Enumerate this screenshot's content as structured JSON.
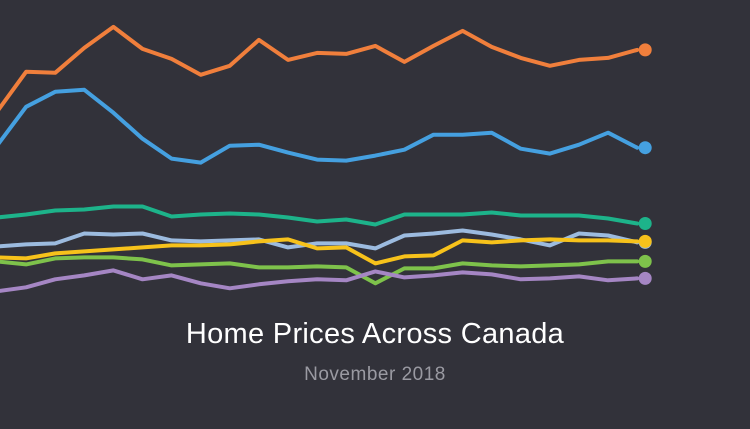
{
  "header": {
    "title": "Home Prices Across Canada",
    "subtitle": "November 2018"
  },
  "chart_data": {
    "type": "line",
    "title": "Home Prices Across Canada",
    "subtitle": "November 2018",
    "xlabel": "",
    "ylabel": "",
    "grid": false,
    "legend": "none",
    "x": [
      0,
      1,
      2,
      3,
      4,
      5,
      6,
      7,
      8,
      9,
      10,
      11,
      12,
      13,
      14,
      15,
      16,
      17,
      18,
      19,
      20,
      21,
      22
    ],
    "ylim": [
      0,
      430
    ],
    "series": [
      {
        "color": "#f07f3c",
        "values": [
          318,
          358,
          357,
          382,
          403,
          381,
          371,
          355,
          364,
          390,
          370,
          377,
          376,
          384,
          368,
          384,
          399,
          383,
          372,
          364,
          370,
          372,
          380
        ]
      },
      {
        "color": "#45a0e0",
        "values": [
          284,
          323,
          338,
          340,
          317,
          291,
          271,
          267,
          284,
          285,
          277,
          270,
          269,
          274,
          280,
          295,
          295,
          297,
          281,
          276,
          285,
          297,
          282
        ]
      },
      {
        "color": "#1db38a",
        "values": [
          212,
          215,
          219,
          220,
          223,
          223,
          213,
          215,
          216,
          215,
          212,
          208,
          210,
          205,
          215,
          215,
          215,
          217,
          214,
          214,
          214,
          211,
          206
        ]
      },
      {
        "color": "#9cbbdf",
        "values": [
          183,
          185,
          186,
          196,
          195,
          196,
          189,
          188,
          189,
          190,
          182,
          186,
          186,
          181,
          194,
          196,
          199,
          195,
          190,
          184,
          196,
          194,
          187
        ]
      },
      {
        "color": "#f7c21b",
        "values": [
          172,
          171,
          176,
          178,
          180,
          182,
          184,
          184,
          185,
          188,
          190,
          181,
          182,
          166,
          173,
          174,
          189,
          187,
          189,
          190,
          189,
          189,
          188
        ]
      },
      {
        "color": "#7ec24b",
        "values": [
          168,
          165,
          171,
          172,
          172,
          170,
          164,
          165,
          166,
          162,
          162,
          163,
          162,
          146,
          161,
          161,
          166,
          164,
          163,
          164,
          165,
          168,
          168
        ]
      },
      {
        "color": "#a586c4",
        "values": [
          138,
          142,
          150,
          154,
          159,
          150,
          154,
          146,
          141,
          145,
          148,
          150,
          149,
          158,
          152,
          154,
          157,
          155,
          150,
          151,
          153,
          149,
          151
        ]
      }
    ]
  }
}
